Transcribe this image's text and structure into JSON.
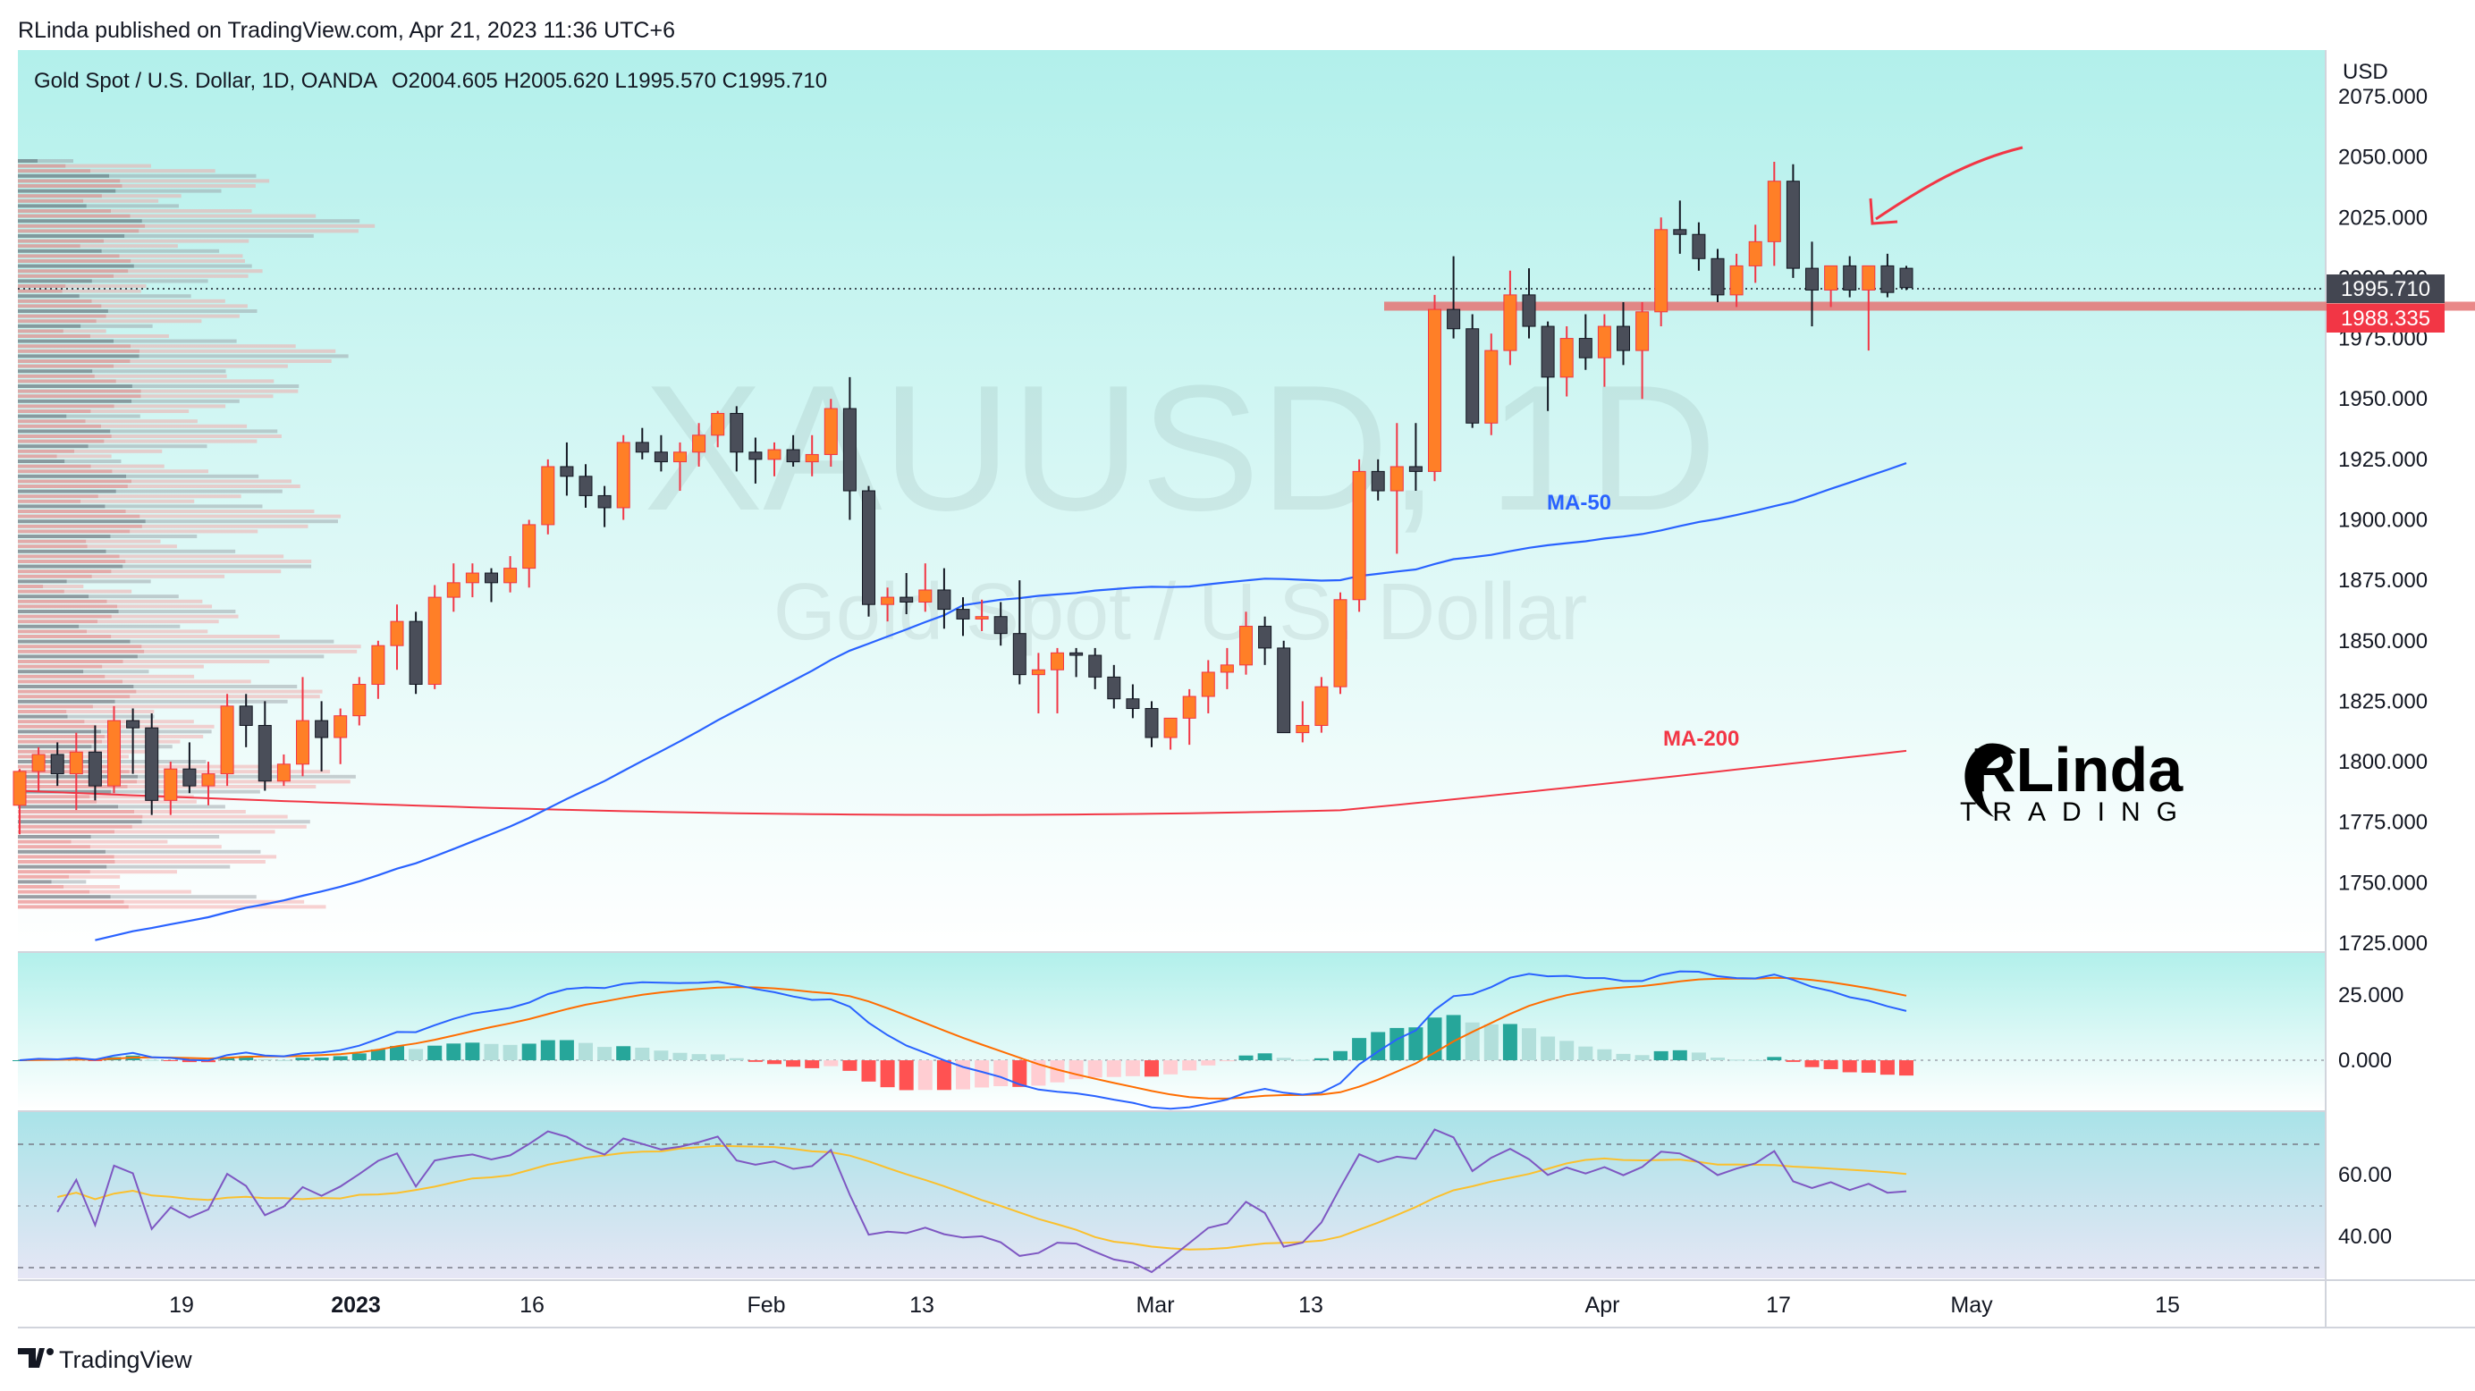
{
  "header": {
    "publisher_line": "RLinda published on TradingView.com, Apr 21, 2023 11:36 UTC+6",
    "instrument": "Gold Spot / U.S. Dollar, 1D, OANDA",
    "ohlc": "O2004.605  H2005.620  L1995.570  C1995.710"
  },
  "watermark": {
    "symbol": "XAUUSD, 1D",
    "name": "Gold Spot / U.S. Dollar"
  },
  "logo": {
    "text": "RLinda",
    "sub": "TRADING"
  },
  "footer": {
    "brand": "TradingView"
  },
  "colors": {
    "up": "#ff7f27",
    "down": "#4a4e59",
    "ma50": "#2962ff",
    "ma200": "#f23645",
    "bg_top": "#b2f0eb",
    "bg_bottom": "#ffffff",
    "level": "#e57373"
  },
  "chart_data": {
    "type": "candlestick",
    "currency_label": "USD",
    "price_axis": {
      "ticks": [
        "2075.000",
        "2050.000",
        "2025.000",
        "2000.000",
        "1975.000",
        "1950.000",
        "1925.000",
        "1900.000",
        "1875.000",
        "1850.000",
        "1825.000",
        "1800.000",
        "1775.000",
        "1750.000",
        "1725.000"
      ],
      "range": [
        1721,
        2080
      ]
    },
    "last_price": "1995.710",
    "level_label": "1988.335",
    "level_price": 1988.335,
    "time_axis": [
      "19",
      "2023",
      "16",
      "Feb",
      "13",
      "Mar",
      "13",
      "Apr",
      "17",
      "May",
      "15"
    ],
    "annotations": {
      "ma50_label": "MA-50",
      "ma200_label": "MA-200"
    },
    "candles": [
      [
        1782,
        1797,
        1770,
        1796
      ],
      [
        1796,
        1806,
        1788,
        1803
      ],
      [
        1803,
        1808,
        1790,
        1795
      ],
      [
        1795,
        1812,
        1780,
        1804
      ],
      [
        1804,
        1815,
        1784,
        1790
      ],
      [
        1790,
        1823,
        1787,
        1817
      ],
      [
        1817,
        1822,
        1795,
        1814
      ],
      [
        1814,
        1820,
        1778,
        1784
      ],
      [
        1784,
        1800,
        1778,
        1797
      ],
      [
        1797,
        1808,
        1787,
        1790
      ],
      [
        1790,
        1800,
        1782,
        1795
      ],
      [
        1795,
        1828,
        1790,
        1823
      ],
      [
        1823,
        1828,
        1806,
        1815
      ],
      [
        1815,
        1825,
        1788,
        1792
      ],
      [
        1792,
        1803,
        1790,
        1799
      ],
      [
        1799,
        1835,
        1794,
        1817
      ],
      [
        1817,
        1825,
        1796,
        1810
      ],
      [
        1810,
        1822,
        1799,
        1819
      ],
      [
        1819,
        1835,
        1815,
        1832
      ],
      [
        1832,
        1850,
        1826,
        1848
      ],
      [
        1848,
        1865,
        1838,
        1858
      ],
      [
        1858,
        1862,
        1828,
        1832
      ],
      [
        1832,
        1873,
        1830,
        1868
      ],
      [
        1868,
        1882,
        1862,
        1874
      ],
      [
        1874,
        1882,
        1868,
        1878
      ],
      [
        1878,
        1880,
        1866,
        1874
      ],
      [
        1874,
        1885,
        1870,
        1880
      ],
      [
        1880,
        1900,
        1872,
        1898
      ],
      [
        1898,
        1925,
        1894,
        1922
      ],
      [
        1922,
        1932,
        1910,
        1918
      ],
      [
        1918,
        1923,
        1905,
        1910
      ],
      [
        1910,
        1914,
        1897,
        1905
      ],
      [
        1905,
        1935,
        1900,
        1932
      ],
      [
        1932,
        1938,
        1925,
        1928
      ],
      [
        1928,
        1935,
        1920,
        1924
      ],
      [
        1924,
        1932,
        1912,
        1928
      ],
      [
        1928,
        1940,
        1922,
        1935
      ],
      [
        1935,
        1945,
        1930,
        1944
      ],
      [
        1944,
        1947,
        1920,
        1928
      ],
      [
        1928,
        1934,
        1915,
        1925
      ],
      [
        1925,
        1932,
        1918,
        1929
      ],
      [
        1929,
        1935,
        1922,
        1924
      ],
      [
        1924,
        1935,
        1918,
        1927
      ],
      [
        1927,
        1950,
        1922,
        1946
      ],
      [
        1946,
        1959,
        1900,
        1912
      ],
      [
        1912,
        1914,
        1860,
        1865
      ],
      [
        1865,
        1872,
        1858,
        1868
      ],
      [
        1868,
        1878,
        1861,
        1866
      ],
      [
        1866,
        1882,
        1862,
        1871
      ],
      [
        1871,
        1880,
        1855,
        1863
      ],
      [
        1863,
        1868,
        1852,
        1859
      ],
      [
        1859,
        1867,
        1854,
        1860
      ],
      [
        1860,
        1866,
        1848,
        1853
      ],
      [
        1853,
        1875,
        1832,
        1836
      ],
      [
        1836,
        1845,
        1820,
        1838
      ],
      [
        1838,
        1847,
        1820,
        1845
      ],
      [
        1845,
        1847,
        1835,
        1844
      ],
      [
        1844,
        1847,
        1830,
        1835
      ],
      [
        1835,
        1840,
        1822,
        1826
      ],
      [
        1826,
        1832,
        1818,
        1822
      ],
      [
        1822,
        1825,
        1806,
        1810
      ],
      [
        1810,
        1818,
        1805,
        1818
      ],
      [
        1818,
        1830,
        1807,
        1827
      ],
      [
        1827,
        1842,
        1820,
        1837
      ],
      [
        1837,
        1847,
        1830,
        1840
      ],
      [
        1840,
        1862,
        1836,
        1856
      ],
      [
        1856,
        1860,
        1840,
        1847
      ],
      [
        1847,
        1850,
        1812,
        1812
      ],
      [
        1812,
        1825,
        1808,
        1815
      ],
      [
        1815,
        1835,
        1812,
        1831
      ],
      [
        1831,
        1870,
        1828,
        1867
      ],
      [
        1867,
        1925,
        1862,
        1920
      ],
      [
        1920,
        1925,
        1908,
        1912
      ],
      [
        1912,
        1940,
        1886,
        1922
      ],
      [
        1922,
        1940,
        1912,
        1920
      ],
      [
        1920,
        1993,
        1916,
        1987
      ],
      [
        1987,
        2009,
        1975,
        1979
      ],
      [
        1979,
        1985,
        1938,
        1940
      ],
      [
        1940,
        1977,
        1935,
        1970
      ],
      [
        1970,
        2003,
        1964,
        1993
      ],
      [
        1993,
        2004,
        1975,
        1980
      ],
      [
        1980,
        1982,
        1945,
        1959
      ],
      [
        1959,
        1980,
        1951,
        1975
      ],
      [
        1975,
        1985,
        1962,
        1967
      ],
      [
        1967,
        1985,
        1955,
        1980
      ],
      [
        1980,
        1990,
        1964,
        1970
      ],
      [
        1970,
        1990,
        1950,
        1986
      ],
      [
        1986,
        2025,
        1980,
        2020
      ],
      [
        2020,
        2032,
        2010,
        2018
      ],
      [
        2018,
        2023,
        2003,
        2008
      ],
      [
        2008,
        2012,
        1990,
        1993
      ],
      [
        1993,
        2010,
        1988,
        2005
      ],
      [
        2005,
        2022,
        1998,
        2015
      ],
      [
        2015,
        2048,
        2005,
        2040
      ],
      [
        2040,
        2047,
        2000,
        2004
      ],
      [
        2004,
        2015,
        1980,
        1995
      ],
      [
        1995,
        2005,
        1988,
        2005
      ],
      [
        2005,
        2009,
        1992,
        1995
      ],
      [
        1995,
        2003,
        1970,
        2005
      ],
      [
        2005,
        2010,
        1992,
        1994
      ],
      [
        2004,
        2005,
        1995,
        1996
      ]
    ]
  }
}
